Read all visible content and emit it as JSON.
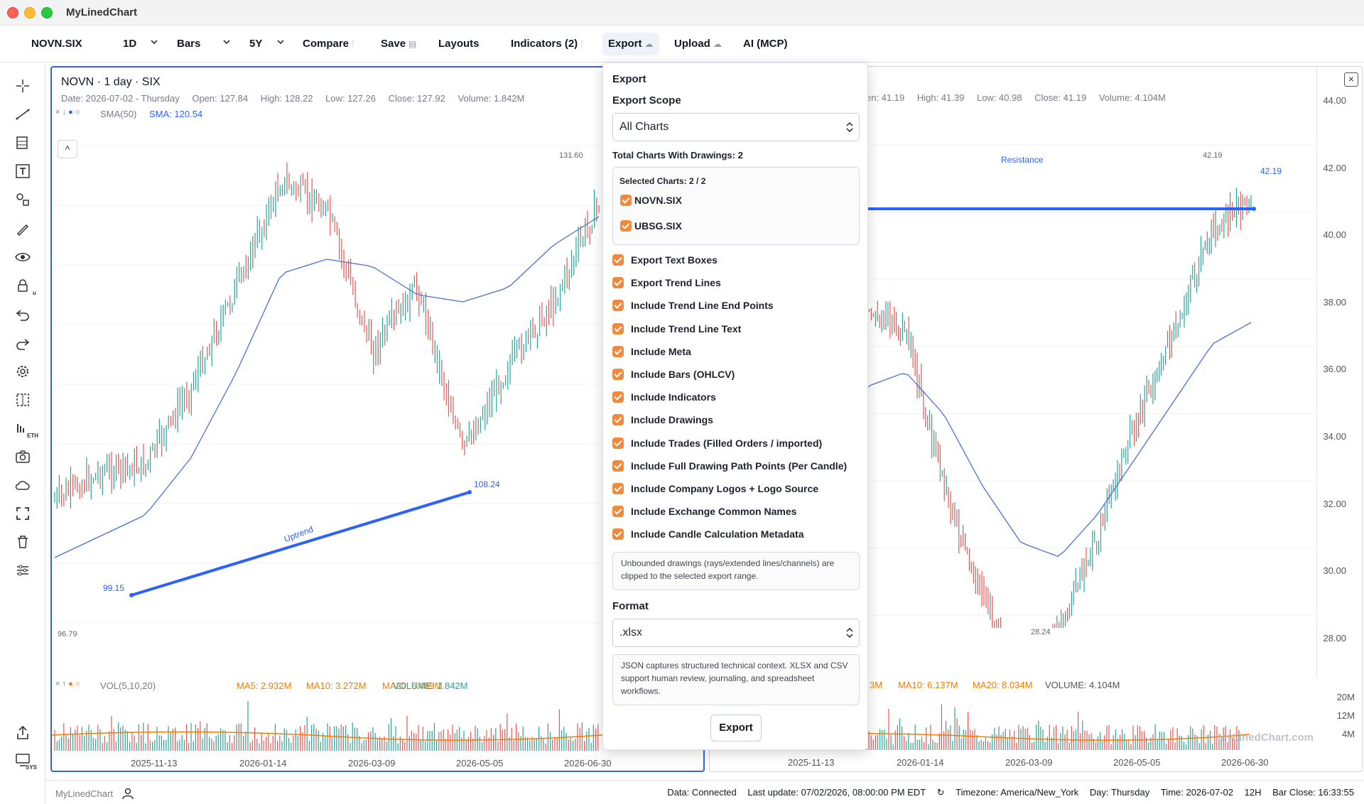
{
  "window": {
    "title": "MyLinedChart"
  },
  "toolbar": {
    "symbol": "NOVN.SIX",
    "interval": "1D",
    "chart_type": "Bars",
    "range": "5Y",
    "compare": "Compare",
    "save": "Save",
    "layouts": "Layouts",
    "indicators": "Indicators (2)",
    "export": "Export",
    "upload": "Upload",
    "ai": "AI (MCP)"
  },
  "left_tools": [
    "crosshair-icon",
    "trend-line-icon",
    "fib-icon",
    "text-box-icon",
    "shapes-icon",
    "brush-icon",
    "eye-icon",
    "lock-icon",
    "undo-icon",
    "redo-icon",
    "settings-icon",
    "measure-icon",
    "eth-icon",
    "camera-icon",
    "cloud-icon",
    "fullscreen-icon",
    "trash-icon",
    "sliders-icon",
    "share-icon",
    "sys-icon"
  ],
  "left_tools_sub": {
    "lock": "u",
    "eth": "ETH",
    "sys": "SYS"
  },
  "chart_left": {
    "title": "NOVN · 1 day · SIX",
    "date": "Date: 2026-07-02 - Thursday",
    "open": "Open: 127.84",
    "high": "High: 128.22",
    "low": "Low: 127.26",
    "close": "Close: 127.92",
    "volume": "Volume: 1.842M",
    "sma_label": "SMA(50)",
    "sma_value": "SMA: 120.54",
    "legend_controls": "× ↓",
    "vol_label": "VOL(5,10,20)",
    "vol_controls": "× ↑",
    "ma5": "MA5: 2.932M",
    "ma10": "MA10: 3.272M",
    "ma20": "MA20: 3.489M",
    "vol_value": "VOLUME: 1.842M",
    "collapse": "^",
    "price_high_label": "131.60",
    "price_low_label": "96.79",
    "trend_start": "99.15",
    "trend_end": "108.24",
    "trend_text": "Uptrend",
    "dates": [
      "2025-11-13",
      "2026-01-14",
      "2026-03-09",
      "2026-05-05",
      "2026-06-30"
    ]
  },
  "chart_right": {
    "open": "en: 41.19",
    "high": "High: 41.39",
    "low": "Low: 40.98",
    "close": "Close: 41.19",
    "volume": "Volume: 4.104M",
    "ma5_tail": "3M",
    "ma10": "MA10: 6.137M",
    "ma20": "MA20: 8.034M",
    "vol_value": "VOLUME: 4.104M",
    "resistance_text": "Resistance",
    "resistance_label": "42.19",
    "resistance_value": "42.19",
    "low_label": "28.24",
    "close_btn": "×",
    "price_ticks": [
      "44.00",
      "42.00",
      "40.00",
      "38.00",
      "36.00",
      "34.00",
      "32.00",
      "30.00",
      "28.00"
    ],
    "vol_ticks": [
      "20M",
      "12M",
      "4M"
    ],
    "dates": [
      "2025-11-13",
      "2026-01-14",
      "2026-03-09",
      "2026-05-05",
      "2026-06-30"
    ],
    "watermark": "MyLinedChart.com"
  },
  "export_menu": {
    "title": "Export",
    "scope_label": "Export Scope",
    "scope_value": "All Charts",
    "total_label": "Total Charts With Drawings: 2",
    "selected_label": "Selected Charts: 2 / 2",
    "charts": [
      "NOVN.SIX",
      "UBSG.SIX"
    ],
    "options": [
      "Export Text Boxes",
      "Export Trend Lines",
      "Include Trend Line End Points",
      "Include Trend Line Text",
      "Include Meta",
      "Include Bars (OHLCV)",
      "Include Indicators",
      "Include Drawings",
      "Include Trades (Filled Orders / imported)",
      "Include Full Drawing Path Points (Per Candle)",
      "Include Company Logos + Logo Source",
      "Include Exchange Common Names",
      "Include Candle Calculation Metadata"
    ],
    "note": "Unbounded drawings (rays/extended lines/channels) are clipped to the selected export range.",
    "format_label": "Format",
    "format_value": ".xlsx",
    "format_note": "JSON captures structured technical context. XLSX and CSV support human review, journaling, and spreadsheet workflows.",
    "export_button": "Export"
  },
  "statusbar": {
    "brand": "MyLinedChart",
    "data": "Data: Connected",
    "last_update": "Last update: 07/02/2026, 08:00:00 PM EDT",
    "refresh": "↻",
    "timezone": "Timezone: America/New_York",
    "day": "Day: Thursday",
    "time": "Time: 2026-07-02",
    "hours": "12H",
    "bar_close": "Bar Close: 16:33:55"
  },
  "colors": {
    "accent": "#2962ff",
    "up": "#26a69a",
    "down": "#ef5350",
    "checkbox": "#ef8a3c",
    "ma_orange": "#f57c00"
  }
}
